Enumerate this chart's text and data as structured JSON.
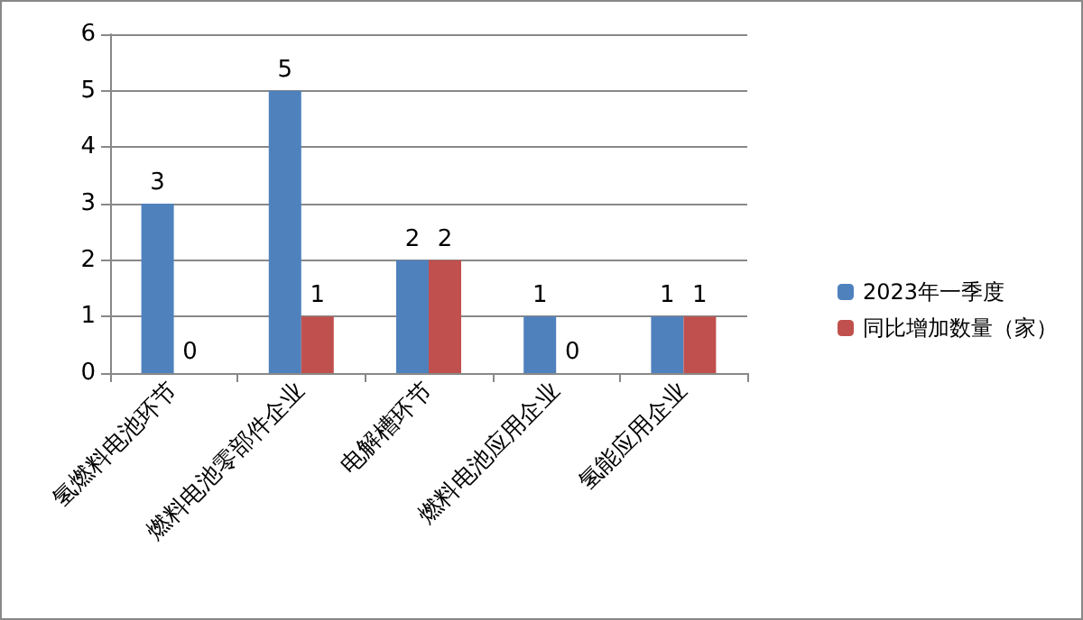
{
  "chart_data": {
    "type": "bar",
    "categories": [
      "氢燃料电池环节",
      "燃料电池零部件企业",
      "电解槽环节",
      "燃料电池应用企业",
      "氢能应用企业"
    ],
    "series": [
      {
        "name": "2023年一季度",
        "color": "#4f81bd",
        "values": [
          3,
          5,
          2,
          1,
          1
        ]
      },
      {
        "name": "同比增加数量（家）",
        "color": "#c0504d",
        "values": [
          0,
          1,
          2,
          0,
          1
        ]
      }
    ],
    "ylim": [
      0,
      6
    ],
    "yticks": [
      0,
      1,
      2,
      3,
      4,
      5,
      6
    ],
    "grid": "y",
    "legend": "right",
    "data_labels": true
  }
}
